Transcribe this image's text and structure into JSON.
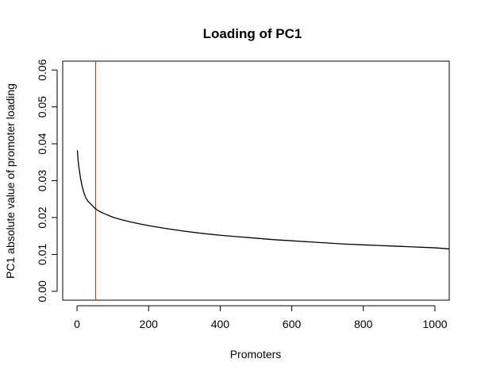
{
  "chart_data": {
    "type": "line",
    "title": "Loading of PC1",
    "xlabel": "Promoters",
    "ylabel": "PC1 absolute value of promoter loading",
    "xlim": [
      -40,
      1040
    ],
    "ylim": [
      -0.0024,
      0.0624
    ],
    "x_ticks": [
      0,
      200,
      400,
      600,
      800,
      1000
    ],
    "x_tick_labels": [
      "0",
      "200",
      "400",
      "600",
      "800",
      "1000"
    ],
    "y_ticks": [
      0.0,
      0.01,
      0.02,
      0.03,
      0.04,
      0.05,
      0.06
    ],
    "y_tick_labels": [
      "0.00",
      "0.01",
      "0.02",
      "0.03",
      "0.04",
      "0.05",
      "0.06"
    ],
    "grid": false,
    "series": [
      {
        "x": [
          1,
          3,
          5,
          8,
          10,
          15,
          20,
          25,
          30,
          40,
          50,
          60,
          75,
          100,
          125,
          150,
          175,
          200,
          250,
          300,
          350,
          400,
          450,
          500,
          550,
          600,
          650,
          700,
          750,
          800,
          850,
          900,
          950,
          1000,
          1045
        ],
        "values": [
          0.0382,
          0.0355,
          0.0338,
          0.0318,
          0.0305,
          0.0282,
          0.0265,
          0.0253,
          0.0245,
          0.0235,
          0.0225,
          0.0218,
          0.0211,
          0.0201,
          0.0194,
          0.0188,
          0.0183,
          0.0178,
          0.017,
          0.0163,
          0.0157,
          0.0152,
          0.0148,
          0.0144,
          0.014,
          0.0137,
          0.0134,
          0.0131,
          0.0128,
          0.0126,
          0.0124,
          0.0122,
          0.012,
          0.0118,
          0.0115
        ],
        "color": "#000000"
      }
    ],
    "vlines": [
      {
        "x": 52,
        "color": "#c0392b"
      }
    ]
  }
}
